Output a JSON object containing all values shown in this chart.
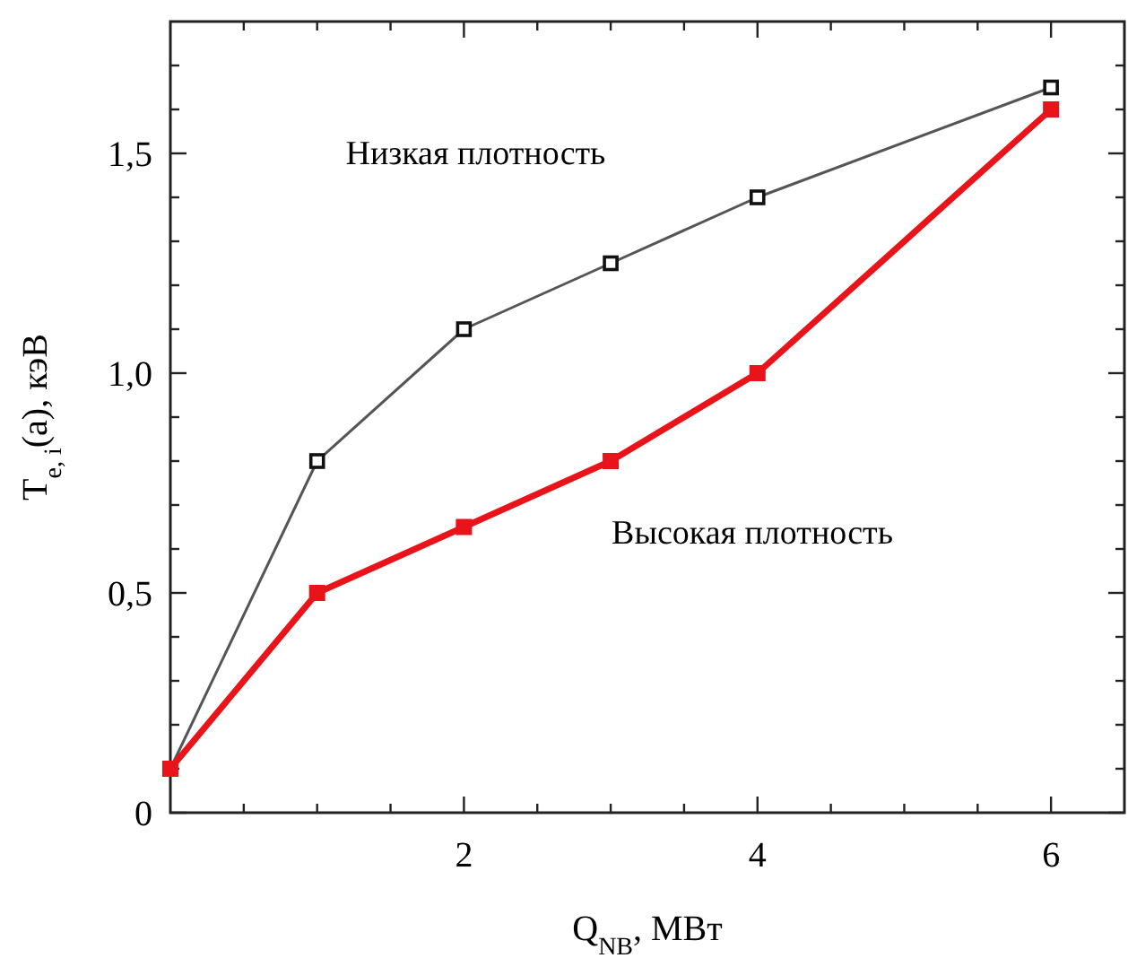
{
  "chart_data": {
    "type": "line",
    "xlabel": "Q$_{NB}$, МВт",
    "ylabel": "T$_{e, i}$(a), кэВ",
    "x": [
      0,
      1,
      2,
      3,
      4,
      6
    ],
    "series": [
      {
        "name": "Низкая плотность",
        "color": "#555555",
        "values": [
          0.1,
          0.8,
          1.1,
          1.25,
          1.4,
          1.65
        ]
      },
      {
        "name": "Высокая плотность",
        "color": "#e8141a",
        "values": [
          0.1,
          0.5,
          0.65,
          0.8,
          1.0,
          1.6
        ]
      }
    ],
    "xlim": [
      0,
      6.5
    ],
    "xticks": [
      {
        "value": 0.5,
        "label": null
      },
      {
        "value": 1,
        "label": null
      },
      {
        "value": 1.5,
        "label": null
      },
      2,
      {
        "value": 2.5,
        "label": null
      },
      {
        "value": 3,
        "label": null
      },
      {
        "value": 3.5,
        "label": null
      },
      4,
      {
        "value": 4.5,
        "label": null
      },
      {
        "value": 5,
        "label": null
      },
      {
        "value": 5.5,
        "label": null
      },
      6
    ],
    "ylim": [
      0,
      1.8
    ],
    "yticks": [
      0,
      {
        "value": 0.1,
        "label": null
      },
      {
        "value": 0.2,
        "label": null
      },
      {
        "value": 0.3,
        "label": null
      },
      {
        "value": 0.4,
        "label": null
      },
      {
        "value": 0.5,
        "label": "0,5"
      },
      {
        "value": 0.6,
        "label": null
      },
      {
        "value": 0.7,
        "label": null
      },
      {
        "value": 0.8,
        "label": null
      },
      {
        "value": 0.9,
        "label": null
      },
      {
        "value": 1.0,
        "label": "1,0"
      },
      {
        "value": 1.1,
        "label": null
      },
      {
        "value": 1.2,
        "label": null
      },
      {
        "value": 1.3,
        "label": null
      },
      {
        "value": 1.4,
        "label": null
      },
      {
        "value": 1.5,
        "label": "1,5"
      },
      {
        "value": 1.6,
        "label": null
      },
      {
        "value": 1.7,
        "label": null
      }
    ],
    "marker": "square",
    "line_style": "solid",
    "grid": false
  }
}
